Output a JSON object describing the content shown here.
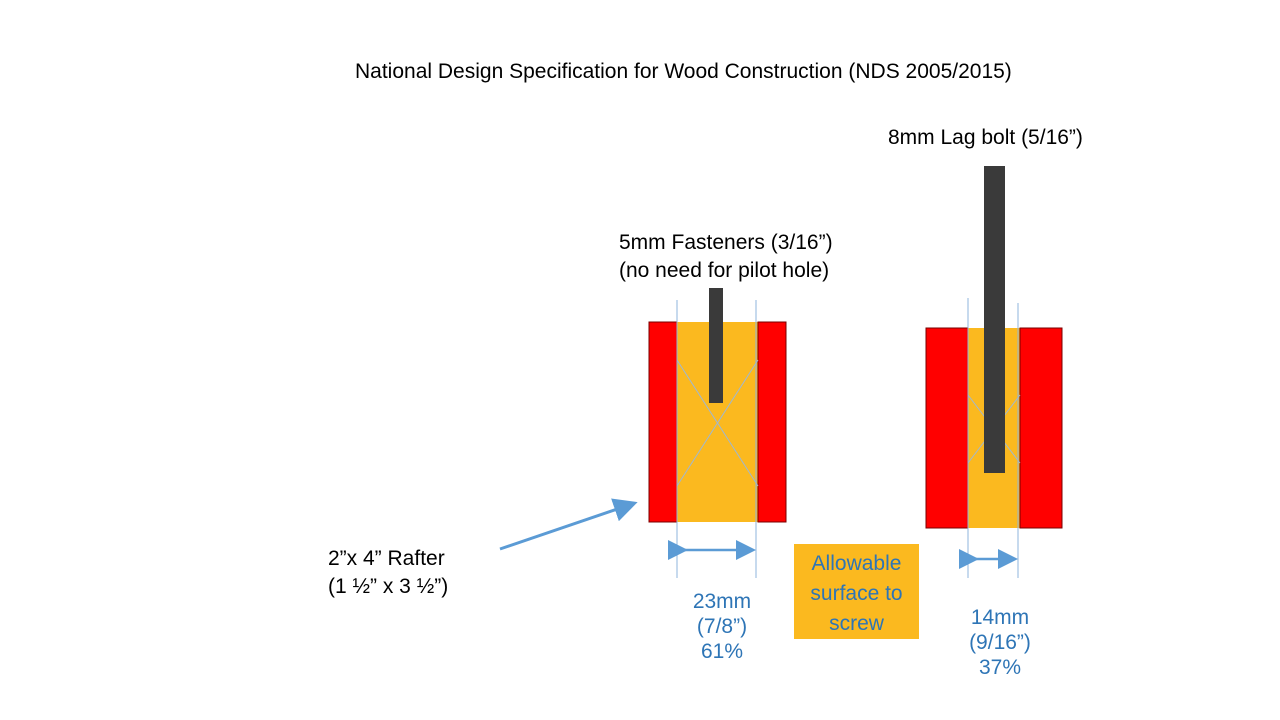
{
  "title": "National Design Specification for Wood Construction (NDS 2005/2015)",
  "lag_bolt_label": "8mm Lag bolt (5/16”)",
  "fastener_label_line1": "5mm Fasteners (3/16”)",
  "fastener_label_line2": "(no need for pilot hole)",
  "rafter_label_line1": "2”x 4” Rafter",
  "rafter_label_line2": "(1 ½” x 3 ½”)",
  "left_dimension": {
    "mm": "23mm",
    "inch": "(7/8”)",
    "percent": "61%"
  },
  "right_dimension": {
    "mm": "14mm",
    "inch": "(9/16”)",
    "percent": "37%"
  },
  "legend_text": "Allowable surface to screw",
  "colors": {
    "wood": "#fbb91f",
    "edge_zone": "#ff0000",
    "fastener": "#3a3a3a",
    "accent": "#2e75b6",
    "guide": "#8fb4dc"
  }
}
